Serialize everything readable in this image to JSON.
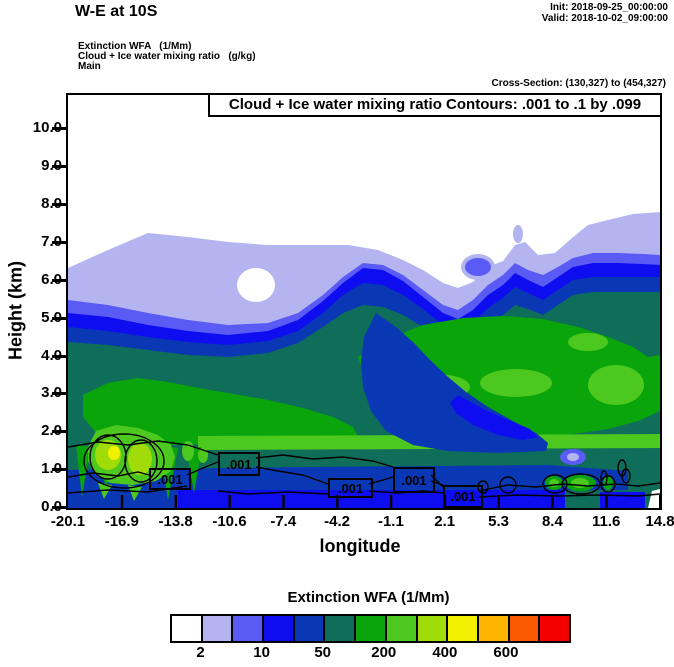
{
  "header": {
    "title": "W-E at 10S",
    "init_label": "Init: 2018-09-25_00:00:00",
    "valid_label": "Valid: 2018-10-02_09:00:00",
    "field_line1": "Extinction WFA   (1/Mm)",
    "field_line2": "Cloud + Ice water mixing ratio   (g/kg)",
    "field_line3": "Main",
    "cross_section": "Cross-Section: (130,327) to (454,327)"
  },
  "plot": {
    "title_box": "Cloud + Ice water mixing ratio Contours: .001 to .1 by .099",
    "xlabel": "longitude",
    "ylabel": "Height (km)",
    "y_tick_labels": [
      "10.0",
      "9.0",
      "8.0",
      "7.0",
      "6.0",
      "5.0",
      "4.0",
      "3.0",
      "2.0",
      "1.0",
      "0.0"
    ],
    "x_tick_labels": [
      "-20.1",
      "-16.9",
      "-13.8",
      "-10.6",
      "-7.4",
      "-4.2",
      "-1.1",
      "2.1",
      "5.3",
      "8.4",
      "11.6",
      "14.8"
    ],
    "contour_labels": [
      ".001",
      ".001",
      ".001",
      ".001",
      ".001"
    ]
  },
  "colorbar": {
    "title": "Extinction WFA  (1/Mm)",
    "labels": [
      "2",
      "10",
      "50",
      "200",
      "400",
      "600"
    ],
    "colors": [
      "#ffffff",
      "#b4b4f0",
      "#5a5af5",
      "#0d0df0",
      "#0a37b4",
      "#0f6e5a",
      "#0aa50a",
      "#4cc81e",
      "#a0dc0a",
      "#f0f000",
      "#ffb400",
      "#fc5a00",
      "#f50000"
    ]
  },
  "chart_data": {
    "type": "heatmap",
    "subtype": "filled-contour vertical cross-section",
    "title": "Cloud + Ice water mixing ratio Contours: .001 to .1 by .099",
    "suptitle": "W-E at 10S",
    "xlabel": "longitude",
    "ylabel": "Height (km)",
    "x_ticks": [
      -20.1,
      -16.9,
      -13.8,
      -10.6,
      -7.4,
      -4.2,
      -1.1,
      2.1,
      5.3,
      8.4,
      11.6,
      14.8
    ],
    "y_ticks": [
      0,
      1,
      2,
      3,
      4,
      5,
      6,
      7,
      8,
      9,
      10
    ],
    "xlim": [
      -20.1,
      14.8
    ],
    "ylim": [
      0,
      10.9
    ],
    "fill_field": "Extinction WFA (1/Mm)",
    "overlay_field": "Cloud + Ice water mixing ratio (g/kg)",
    "overlay_contour_levels": [
      0.001,
      0.1
    ],
    "overlay_label": ".001",
    "colorbar_labels": [
      2,
      10,
      50,
      200,
      400,
      600
    ],
    "colorbar_colors": [
      "#ffffff",
      "#b4b4f0",
      "#5a5af5",
      "#0d0df0",
      "#0a37b4",
      "#0f6e5a",
      "#0aa50a",
      "#4cc81e",
      "#a0dc0a",
      "#f0f000",
      "#ffb400",
      "#fc5a00",
      "#f50000"
    ],
    "cross_section_gridpoints": "(130,327) to (454,327)",
    "init_time": "2018-09-25_00:00:00",
    "valid_time": "2018-10-02_09:00:00",
    "regions": [
      "clear white air above ~7 km across the whole section",
      "light lavender extinction layer roughly 5-7 km across full width, topping near 7.5 km at right edge",
      "blue and dark-blue bands ~3.5-5 km, doming upward to ~6.5 km near lon -1 and sloping down toward both edges",
      "broad dark-teal region ~1-3.5 km spanning the section",
      "green (200-400 1/Mm) cores at 2-4 km over lon -4 to 14 and at 1-2 km near lon -17",
      "yellow-green and yellow (~600 1/Mm) maxima near lon -17.5 to -16 at ~1-1.3 km",
      "thin blue / dark-blue minimum layers below ~0.8 km along the surface",
      "black .001 cloud+ice mixing-ratio contour hugs ~0.5-1.2 km with five labeled boxes"
    ]
  }
}
